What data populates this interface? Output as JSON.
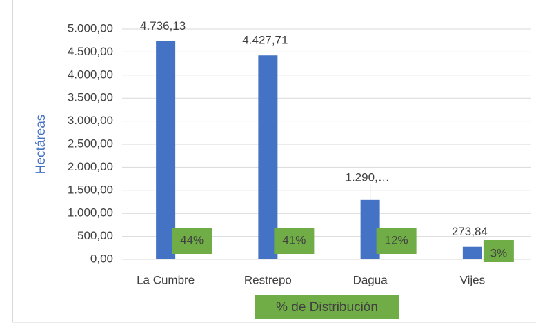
{
  "chart_data": {
    "type": "bar",
    "categories": [
      "La Cumbre",
      "Restrepo",
      "Dagua",
      "Vijes"
    ],
    "values": [
      4736.13,
      4427.71,
      1290,
      273.84
    ],
    "value_labels": [
      "4.736,13",
      "4.427,71",
      "1.290,…",
      "273,84"
    ],
    "annotations": [
      "44%",
      "41%",
      "12%",
      "3%"
    ],
    "color": "#4472c4",
    "annotation_color": "#70ad47",
    "y_label": "Hectáreas",
    "x_label": "% de Distribución",
    "ylim": [
      0,
      5000
    ],
    "yticks": [
      {
        "value": 0,
        "label": "0,00"
      },
      {
        "value": 500,
        "label": "500,00"
      },
      {
        "value": 1000,
        "label": "1.000,00"
      },
      {
        "value": 1500,
        "label": "1.500,00"
      },
      {
        "value": 2000,
        "label": "2.000,00"
      },
      {
        "value": 2500,
        "label": "2.500,00"
      },
      {
        "value": 3000,
        "label": "3.000,00"
      },
      {
        "value": 3500,
        "label": "3.500,00"
      },
      {
        "value": 4000,
        "label": "4.000,00"
      },
      {
        "value": 4500,
        "label": "4.500,00"
      },
      {
        "value": 5000,
        "label": "5.000,00"
      }
    ],
    "grid": true
  }
}
